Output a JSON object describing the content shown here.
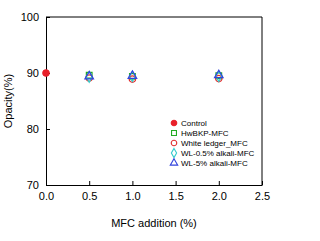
{
  "chart_data": {
    "type": "scatter",
    "x_label": "MFC addition (%)",
    "y_label": "Opacity(%)",
    "xlim": [
      0,
      2.5
    ],
    "xticks": [
      {
        "value": 0,
        "label": "0.0"
      },
      0.5,
      {
        "value": 1,
        "label": "1.0"
      },
      1.5,
      {
        "value": 2,
        "label": "2.0"
      },
      2.5
    ],
    "ylim": [
      70,
      100
    ],
    "yticks": [
      70,
      80,
      90,
      100
    ],
    "grid": false,
    "legend": "lower right",
    "series": [
      {
        "name": "Control",
        "color": "#e8202a",
        "marker": "circle-filled",
        "x": [
          0
        ],
        "values": [
          90.0
        ]
      },
      {
        "name": "HwBKP-MFC",
        "color": "#22aa22",
        "marker": "square-open",
        "x": [
          0.5,
          1.0,
          2.0
        ],
        "values": [
          89.6,
          89.4,
          89.5
        ]
      },
      {
        "name": "White ledger_MFC",
        "color": "#e03030",
        "marker": "circle-open",
        "x": [
          0.5,
          1.0,
          2.0
        ],
        "values": [
          89.1,
          88.9,
          89.0
        ]
      },
      {
        "name": "WL-0.5% alkali-MFC",
        "color": "#33cccc",
        "marker": "diamond-open",
        "x": [
          0.5,
          1.0,
          2.0
        ],
        "values": [
          89.3,
          89.4,
          89.4
        ]
      },
      {
        "name": "WL-5% alkali-MFC",
        "color": "#3344dd",
        "marker": "triangle-open",
        "x": [
          0.5,
          1.0,
          2.0
        ],
        "values": [
          89.4,
          89.5,
          89.6
        ]
      }
    ]
  }
}
